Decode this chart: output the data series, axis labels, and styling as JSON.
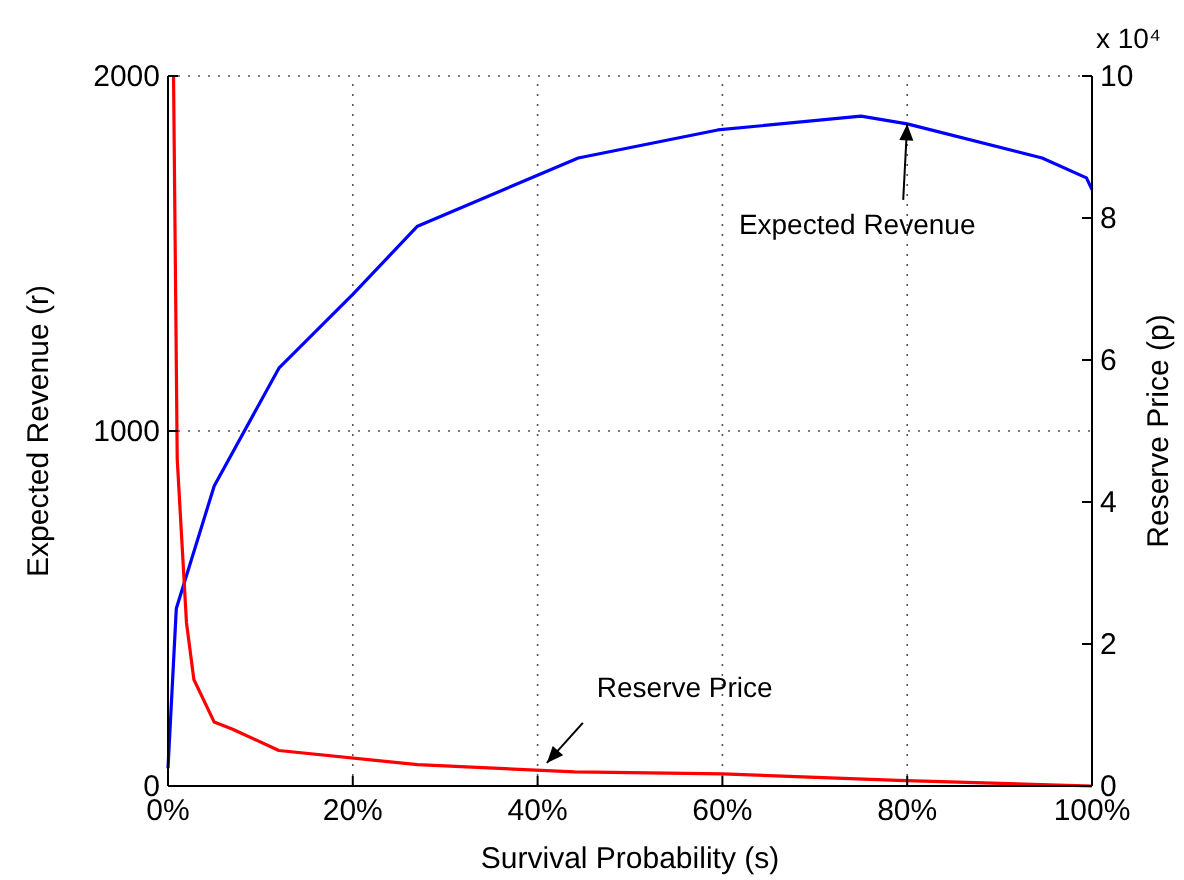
{
  "chart_data": {
    "type": "line",
    "xlabel": "Survival Probability (s)",
    "ylabel": "Expected Revenue (r)",
    "y2label": "Reserve Price (p)",
    "xlim": [
      0,
      100
    ],
    "xticks": [
      {
        "value": 0,
        "label": "0%"
      },
      {
        "value": 20,
        "label": "20%"
      },
      {
        "value": 40,
        "label": "40%"
      },
      {
        "value": 60,
        "label": "60%"
      },
      {
        "value": 80,
        "label": "80%"
      },
      {
        "value": 100,
        "label": "100%"
      }
    ],
    "ylim": [
      0,
      2000
    ],
    "yticks": [
      0,
      1000,
      2000
    ],
    "y2lim": [
      0,
      10
    ],
    "y2ticks": [
      0,
      2,
      4,
      6,
      8,
      10
    ],
    "grid": true,
    "line_style": "solid",
    "marker": "none",
    "series": [
      {
        "color": "#0000ff",
        "x": [
          0,
          0.9,
          5,
          12,
          20,
          27,
          44.4,
          59.5,
          75,
          80,
          94.6,
          99.4,
          100
        ],
        "values": [
          50,
          500,
          845,
          1177,
          1385,
          1577,
          1769,
          1848,
          1887,
          1865,
          1769,
          1713,
          1680
        ]
      },
      {
        "color": "#ff0000",
        "axis": "y2",
        "x": [
          0.6,
          1,
          2,
          2.8,
          5,
          7,
          12,
          27,
          44,
          60,
          79,
          100
        ],
        "values": [
          10,
          4.6,
          2.3,
          1.5,
          0.9,
          0.8,
          0.5,
          0.3,
          0.2,
          0.17,
          0.08,
          0
        ]
      }
    ],
    "annotations": [
      {
        "text": "Expected Revenue",
        "x": 80,
        "y": 1865
      },
      {
        "text": "Reserve Price",
        "x": 41,
        "y": 65
      },
      "x 10⁴"
    ]
  }
}
